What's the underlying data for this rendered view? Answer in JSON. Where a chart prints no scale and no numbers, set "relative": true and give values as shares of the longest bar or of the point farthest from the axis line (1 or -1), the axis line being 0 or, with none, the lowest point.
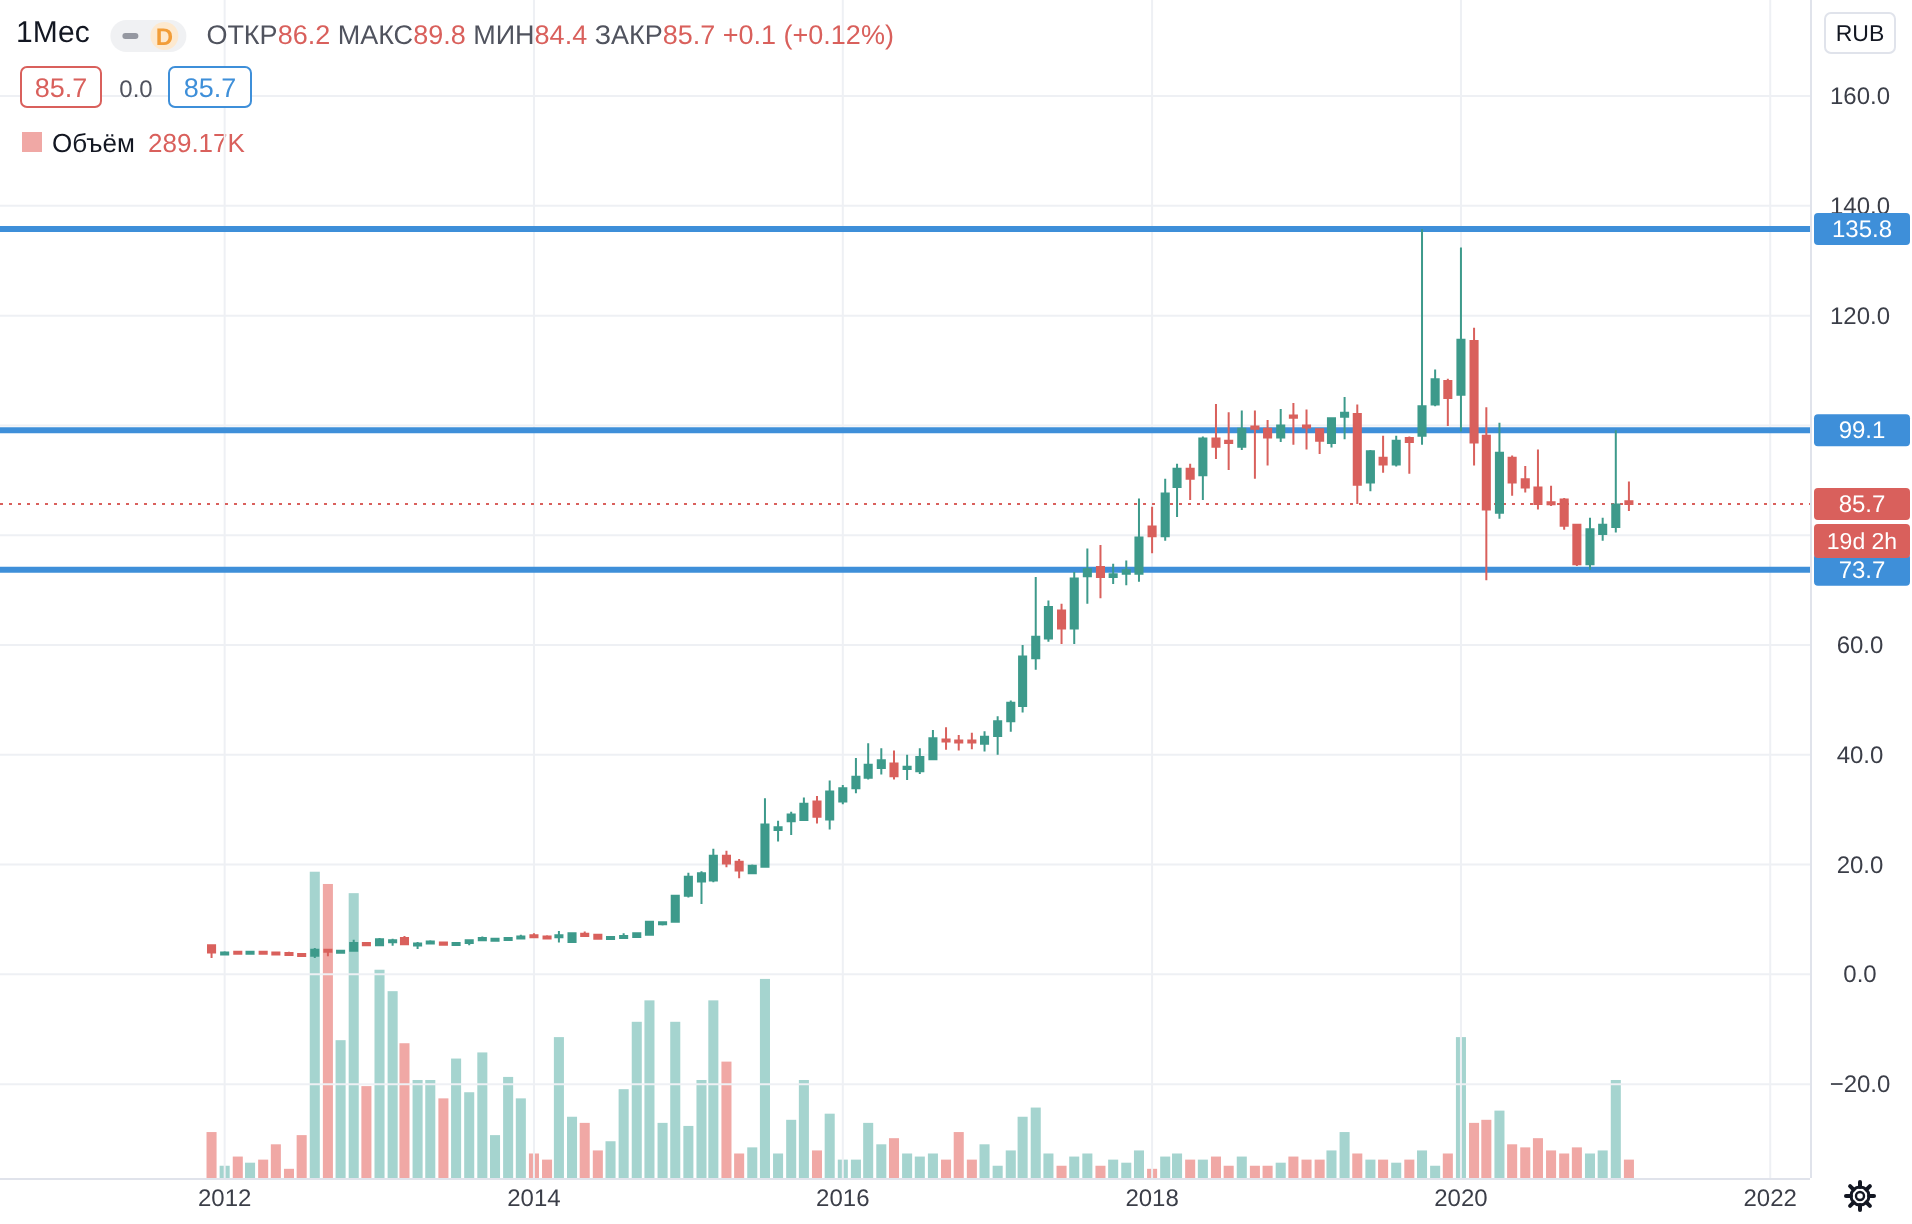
{
  "chart_data": [
    {
      "type": "candlestick",
      "title": "1Мес",
      "x": [
        "2011-12",
        "2012-01",
        "2012-02",
        "2012-03",
        "2012-04",
        "2012-05",
        "2012-06",
        "2012-07",
        "2012-08",
        "2012-09",
        "2012-10",
        "2012-11",
        "2012-12",
        "2013-01",
        "2013-02",
        "2013-03",
        "2013-04",
        "2013-05",
        "2013-06",
        "2013-07",
        "2013-08",
        "2013-09",
        "2013-10",
        "2013-11",
        "2013-12",
        "2014-01",
        "2014-02",
        "2014-03",
        "2014-04",
        "2014-05",
        "2014-06",
        "2014-07",
        "2014-08",
        "2014-09",
        "2014-10",
        "2014-11",
        "2014-12",
        "2015-01",
        "2015-02",
        "2015-03",
        "2015-04",
        "2015-05",
        "2015-06",
        "2015-07",
        "2015-08",
        "2015-09",
        "2015-10",
        "2015-11",
        "2015-12",
        "2016-01",
        "2016-02",
        "2016-03",
        "2016-04",
        "2016-05",
        "2016-06",
        "2016-07",
        "2016-08",
        "2016-09",
        "2016-10",
        "2016-11",
        "2016-12",
        "2017-01",
        "2017-02",
        "2017-03",
        "2017-04",
        "2017-05",
        "2017-06",
        "2017-07",
        "2017-08",
        "2017-09",
        "2017-10",
        "2017-11",
        "2017-12",
        "2018-01",
        "2018-02",
        "2018-03",
        "2018-04",
        "2018-05",
        "2018-06",
        "2018-07",
        "2018-08",
        "2018-09",
        "2018-10",
        "2018-11",
        "2018-12",
        "2019-01",
        "2019-02",
        "2019-03",
        "2019-04",
        "2019-05",
        "2019-06",
        "2019-07",
        "2019-08",
        "2019-09",
        "2019-10",
        "2019-11",
        "2019-12",
        "2020-01",
        "2020-02",
        "2020-03",
        "2020-04",
        "2020-05",
        "2020-06",
        "2020-07",
        "2020-08",
        "2020-09",
        "2020-10",
        "2020-11",
        "2020-12",
        "2021-01",
        "2021-02"
      ],
      "ohlc": [
        [
          5.3,
          5.4,
          3.0,
          4.0
        ],
        [
          3.9,
          4.2,
          3.8,
          4.0
        ],
        [
          4.1,
          4.3,
          3.6,
          4.0
        ],
        [
          4.0,
          4.2,
          3.9,
          4.1
        ],
        [
          4.1,
          4.2,
          3.9,
          4.0
        ],
        [
          4.0,
          4.1,
          3.8,
          3.9
        ],
        [
          3.9,
          4.1,
          3.4,
          3.7
        ],
        [
          3.7,
          3.8,
          3.3,
          3.4
        ],
        [
          3.4,
          4.8,
          3.0,
          4.5
        ],
        [
          4.5,
          4.6,
          3.3,
          4.2
        ],
        [
          4.2,
          4.4,
          4.1,
          4.3
        ],
        [
          4.3,
          6.3,
          4.2,
          5.7
        ],
        [
          5.7,
          5.8,
          5.1,
          5.3
        ],
        [
          5.3,
          6.6,
          5.2,
          6.4
        ],
        [
          6.0,
          6.5,
          5.2,
          6.2
        ],
        [
          6.6,
          7.0,
          5.3,
          5.5
        ],
        [
          5.4,
          5.9,
          4.6,
          5.6
        ],
        [
          5.6,
          6.2,
          5.5,
          6.0
        ],
        [
          5.8,
          5.9,
          5.2,
          5.4
        ],
        [
          5.4,
          5.8,
          5.3,
          5.7
        ],
        [
          5.7,
          6.4,
          5.3,
          6.2
        ],
        [
          6.2,
          6.9,
          6.1,
          6.6
        ],
        [
          6.3,
          6.5,
          6.2,
          6.5
        ],
        [
          6.4,
          6.7,
          6.3,
          6.6
        ],
        [
          6.6,
          7.2,
          6.4,
          6.9
        ],
        [
          7.1,
          7.5,
          6.8,
          7.0
        ],
        [
          6.9,
          7.1,
          6.5,
          6.7
        ],
        [
          6.8,
          7.9,
          5.8,
          7.1
        ],
        [
          5.9,
          7.6,
          5.8,
          7.5
        ],
        [
          7.4,
          7.8,
          6.9,
          7.0
        ],
        [
          7.2,
          7.3,
          6.4,
          6.5
        ],
        [
          6.5,
          7.0,
          6.3,
          6.8
        ],
        [
          6.8,
          7.5,
          6.5,
          7.0
        ],
        [
          6.8,
          7.6,
          6.7,
          7.5
        ],
        [
          7.2,
          9.7,
          7.1,
          9.6
        ],
        [
          9.3,
          9.6,
          8.9,
          9.5
        ],
        [
          9.6,
          14.5,
          9.4,
          14.3
        ],
        [
          14.3,
          18.5,
          14.0,
          17.8
        ],
        [
          16.9,
          18.8,
          12.8,
          18.4
        ],
        [
          17.1,
          22.9,
          16.8,
          21.6
        ],
        [
          21.6,
          22.5,
          19.5,
          20.2
        ],
        [
          20.5,
          21.0,
          17.5,
          18.9
        ],
        [
          18.4,
          20.0,
          18.3,
          19.8
        ],
        [
          19.6,
          32.1,
          19.4,
          27.3
        ],
        [
          26.3,
          28.0,
          24.2,
          26.8
        ],
        [
          27.9,
          29.6,
          25.4,
          29.1
        ],
        [
          28.1,
          32.2,
          28.0,
          31.1
        ],
        [
          31.5,
          32.5,
          27.5,
          28.7
        ],
        [
          28.2,
          35.3,
          26.4,
          33.3
        ],
        [
          31.5,
          34.5,
          31.0,
          33.9
        ],
        [
          33.9,
          39.4,
          33.0,
          36.0
        ],
        [
          35.8,
          42.1,
          35.5,
          38.2
        ],
        [
          37.6,
          41.2,
          36.4,
          39.0
        ],
        [
          38.4,
          40.8,
          35.5,
          36.1
        ],
        [
          37.4,
          40.0,
          35.4,
          37.8
        ],
        [
          37.0,
          41.2,
          36.5,
          39.6
        ],
        [
          39.2,
          44.5,
          39.0,
          43.0
        ],
        [
          42.8,
          45.0,
          40.9,
          42.4
        ],
        [
          42.6,
          43.6,
          40.8,
          42.3
        ],
        [
          42.6,
          44.0,
          41.0,
          42.5
        ],
        [
          42.0,
          44.3,
          40.6,
          43.3
        ],
        [
          43.4,
          47.0,
          40.0,
          46.1
        ],
        [
          46.1,
          49.9,
          44.2,
          49.5
        ],
        [
          48.9,
          60.0,
          47.7,
          57.9
        ],
        [
          57.6,
          72.4,
          55.5,
          61.5
        ],
        [
          61.2,
          68.1,
          60.6,
          66.9
        ],
        [
          66.3,
          67.5,
          60.2,
          63.0
        ],
        [
          63.0,
          73.3,
          60.2,
          72.1
        ],
        [
          72.5,
          77.6,
          67.5,
          73.8
        ],
        [
          74.2,
          78.2,
          68.5,
          72.4
        ],
        [
          72.4,
          74.8,
          71.1,
          72.9
        ],
        [
          73.0,
          75.4,
          70.9,
          73.6
        ],
        [
          73.0,
          86.7,
          71.5,
          79.6
        ],
        [
          81.6,
          85.2,
          76.7,
          79.8
        ],
        [
          79.8,
          90.3,
          79.0,
          87.6
        ],
        [
          88.8,
          93.0,
          83.3,
          92.1
        ],
        [
          92.1,
          93.0,
          86.4,
          90.3
        ],
        [
          90.9,
          98.0,
          86.4,
          97.6
        ],
        [
          97.6,
          103.9,
          93.9,
          96.1
        ],
        [
          97.2,
          102.4,
          91.9,
          96.8
        ],
        [
          96.1,
          102.7,
          95.5,
          99.4
        ],
        [
          99.8,
          102.7,
          90.3,
          99.4
        ],
        [
          99.4,
          101.0,
          92.7,
          97.8
        ],
        [
          97.8,
          103.0,
          97.0,
          100.0
        ],
        [
          101.8,
          104.1,
          96.5,
          101.4
        ],
        [
          100.0,
          102.9,
          95.6,
          99.6
        ],
        [
          99.3,
          99.5,
          94.8,
          97.2
        ],
        [
          96.8,
          101.5,
          96.0,
          101.3
        ],
        [
          101.6,
          105.2,
          97.5,
          102.3
        ],
        [
          102.1,
          103.8,
          85.7,
          89.2
        ],
        [
          89.6,
          95.5,
          88.0,
          95.3
        ],
        [
          94.1,
          98.1,
          91.4,
          92.9
        ],
        [
          92.9,
          98.1,
          92.5,
          97.2
        ],
        [
          97.7,
          98.0,
          91.2,
          97.0
        ],
        [
          98.1,
          135.8,
          96.5,
          103.5
        ],
        [
          103.8,
          110.2,
          103.5,
          108.4
        ],
        [
          108.1,
          108.5,
          99.9,
          105.0
        ],
        [
          105.6,
          132.4,
          98.9,
          115.6
        ],
        [
          115.4,
          117.8,
          92.7,
          96.9
        ],
        [
          98.1,
          103.3,
          71.8,
          84.7
        ],
        [
          84.1,
          100.5,
          83.0,
          95.0
        ],
        [
          94.1,
          94.5,
          87.2,
          89.6
        ],
        [
          90.2,
          92.6,
          87.8,
          88.7
        ],
        [
          88.7,
          95.6,
          84.7,
          85.7
        ],
        [
          86.0,
          89.0,
          85.3,
          85.9
        ],
        [
          86.5,
          86.8,
          81.0,
          81.7
        ],
        [
          81.9,
          82.0,
          74.4,
          74.7
        ],
        [
          74.7,
          83.2,
          73.7,
          81.1
        ],
        [
          80.2,
          83.2,
          79.0,
          81.9
        ],
        [
          81.5,
          99.1,
          80.5,
          85.6
        ],
        [
          86.2,
          89.8,
          84.4,
          85.7
        ]
      ],
      "colors": [
        "#d9605c",
        "#3d9a8b",
        "#d9605c",
        "#3d9a8b",
        "#d9605c",
        "#d9605c",
        "#d9605c",
        "#d9605c",
        "#3d9a8b",
        "#d9605c",
        "#3d9a8b",
        "#3d9a8b",
        "#d9605c",
        "#3d9a8b",
        "#3d9a8b",
        "#d9605c",
        "#3d9a8b",
        "#3d9a8b",
        "#d9605c",
        "#3d9a8b",
        "#3d9a8b",
        "#3d9a8b",
        "#3d9a8b",
        "#3d9a8b",
        "#3d9a8b",
        "#d9605c",
        "#d9605c",
        "#3d9a8b",
        "#3d9a8b",
        "#d9605c",
        "#d9605c",
        "#3d9a8b",
        "#3d9a8b",
        "#3d9a8b",
        "#3d9a8b",
        "#3d9a8b",
        "#3d9a8b",
        "#3d9a8b",
        "#3d9a8b",
        "#3d9a8b",
        "#d9605c",
        "#d9605c",
        "#3d9a8b",
        "#3d9a8b",
        "#3d9a8b",
        "#3d9a8b",
        "#3d9a8b",
        "#d9605c",
        "#3d9a8b",
        "#3d9a8b",
        "#3d9a8b",
        "#3d9a8b",
        "#3d9a8b",
        "#d9605c",
        "#3d9a8b",
        "#3d9a8b",
        "#3d9a8b",
        "#d9605c",
        "#d9605c",
        "#d9605c",
        "#3d9a8b",
        "#3d9a8b",
        "#3d9a8b",
        "#3d9a8b",
        "#3d9a8b",
        "#3d9a8b",
        "#d9605c",
        "#3d9a8b",
        "#3d9a8b",
        "#d9605c",
        "#3d9a8b",
        "#3d9a8b",
        "#3d9a8b",
        "#d9605c",
        "#3d9a8b",
        "#3d9a8b",
        "#d9605c",
        "#3d9a8b",
        "#d9605c",
        "#d9605c",
        "#3d9a8b",
        "#d9605c",
        "#d9605c",
        "#3d9a8b",
        "#d9605c",
        "#d9605c",
        "#d9605c",
        "#3d9a8b",
        "#3d9a8b",
        "#d9605c",
        "#3d9a8b",
        "#d9605c",
        "#3d9a8b",
        "#d9605c",
        "#3d9a8b",
        "#3d9a8b",
        "#d9605c",
        "#3d9a8b",
        "#d9605c",
        "#d9605c",
        "#3d9a8b",
        "#d9605c",
        "#d9605c",
        "#d9605c",
        "#d9605c",
        "#d9605c",
        "#d9605c",
        "#3d9a8b",
        "#3d9a8b",
        "#3d9a8b",
        "#d9605c"
      ],
      "xlim": [
        "2010-07-19",
        "2022-04-05"
      ],
      "xticks": [
        "2012",
        "2014",
        "2016",
        "2018",
        "2020",
        "2022"
      ],
      "ylim": [
        -37.1,
        177.5
      ],
      "yticks": [
        {
          "value": -20,
          "label": "−20.0"
        },
        {
          "value": 0,
          "label": "0.0"
        },
        {
          "value": 20,
          "label": "20.0"
        },
        {
          "value": 40,
          "label": "40.0"
        },
        {
          "value": 60,
          "label": "60.0"
        },
        {
          "value": 80,
          "label": null
        },
        {
          "value": 100,
          "label": null
        },
        {
          "value": 120,
          "label": "120.0"
        },
        {
          "value": 140,
          "label": "140.0"
        },
        {
          "value": 160,
          "label": "160.0"
        }
      ],
      "ref_lines": [
        {
          "axis": "y",
          "value": 135.8,
          "label": "135.8",
          "color": "#3e8fd9"
        },
        {
          "axis": "y",
          "value": 99.1,
          "label": "99.1",
          "color": "#3e8fd9"
        },
        {
          "axis": "y",
          "value": 73.7,
          "label": "73.7",
          "color": "#3e8fd9"
        },
        {
          "axis": "y",
          "value": 85.7,
          "label": "85.7",
          "color": "#d9605c",
          "line_style": "dotted"
        }
      ],
      "annotations": [
        "ОТКР86.2 МАКС89.8 МИН84.4 ЗАКР85.7 +0.1 (+0.12%)",
        "85.7",
        "0.0",
        "85.7",
        "RUB",
        "19d 2h",
        "D"
      ],
      "grid": true
    },
    {
      "type": "bar",
      "relative": true,
      "legend": "top left",
      "x": [
        "2011-12",
        "2012-01",
        "2012-02",
        "2012-03",
        "2012-04",
        "2012-05",
        "2012-06",
        "2012-07",
        "2012-08",
        "2012-09",
        "2012-10",
        "2012-11",
        "2012-12",
        "2013-01",
        "2013-02",
        "2013-03",
        "2013-04",
        "2013-05",
        "2013-06",
        "2013-07",
        "2013-08",
        "2013-09",
        "2013-10",
        "2013-11",
        "2013-12",
        "2014-01",
        "2014-02",
        "2014-03",
        "2014-04",
        "2014-05",
        "2014-06",
        "2014-07",
        "2014-08",
        "2014-09",
        "2014-10",
        "2014-11",
        "2014-12",
        "2015-01",
        "2015-02",
        "2015-03",
        "2015-04",
        "2015-05",
        "2015-06",
        "2015-07",
        "2015-08",
        "2015-09",
        "2015-10",
        "2015-11",
        "2015-12",
        "2016-01",
        "2016-02",
        "2016-03",
        "2016-04",
        "2016-05",
        "2016-06",
        "2016-07",
        "2016-08",
        "2016-09",
        "2016-10",
        "2016-11",
        "2016-12",
        "2017-01",
        "2017-02",
        "2017-03",
        "2017-04",
        "2017-05",
        "2017-06",
        "2017-07",
        "2017-08",
        "2017-09",
        "2017-10",
        "2017-11",
        "2017-12",
        "2018-01",
        "2018-02",
        "2018-03",
        "2018-04",
        "2018-05",
        "2018-06",
        "2018-07",
        "2018-08",
        "2018-09",
        "2018-10",
        "2018-11",
        "2018-12",
        "2019-01",
        "2019-02",
        "2019-03",
        "2019-04",
        "2019-05",
        "2019-06",
        "2019-07",
        "2019-08",
        "2019-09",
        "2019-10",
        "2019-11",
        "2019-12",
        "2020-01",
        "2020-02",
        "2020-03",
        "2020-04",
        "2020-05",
        "2020-06",
        "2020-07",
        "2020-08",
        "2020-09",
        "2020-10",
        "2020-11",
        "2020-12",
        "2021-01",
        "2021-02"
      ],
      "xlim": [
        "2010-07-19",
        "2022-04-05"
      ],
      "series": [
        {
          "name": "Объём",
          "values": [
            0.15,
            0.04,
            0.07,
            0.05,
            0.06,
            0.11,
            0.03,
            0.14,
            1,
            0.96,
            0.45,
            0.93,
            0.3,
            0.68,
            0.61,
            0.44,
            0.32,
            0.32,
            0.26,
            0.39,
            0.28,
            0.41,
            0.14,
            0.33,
            0.26,
            0.08,
            0.06,
            0.46,
            0.2,
            0.18,
            0.09,
            0.12,
            0.29,
            0.51,
            0.58,
            0.18,
            0.51,
            0.17,
            0.32,
            0.58,
            0.38,
            0.08,
            0.1,
            0.65,
            0.08,
            0.19,
            0.32,
            0.09,
            0.21,
            0.06,
            0.06,
            0.18,
            0.11,
            0.13,
            0.08,
            0.07,
            0.08,
            0.06,
            0.15,
            0.06,
            0.11,
            0.04,
            0.09,
            0.2,
            0.23,
            0.08,
            0.04,
            0.07,
            0.08,
            0.04,
            0.06,
            0.05,
            0.09,
            0.03,
            0.07,
            0.08,
            0.06,
            0.06,
            0.07,
            0.04,
            0.07,
            0.04,
            0.04,
            0.05,
            0.07,
            0.06,
            0.06,
            0.09,
            0.15,
            0.08,
            0.06,
            0.06,
            0.05,
            0.06,
            0.09,
            0.04,
            0.08,
            0.46,
            0.18,
            0.19,
            0.22,
            0.11,
            0.1,
            0.13,
            0.09,
            0.08,
            0.1,
            0.08,
            0.09,
            0.32,
            0.06
          ],
          "colors": [
            "#f0a8a5",
            "#a5d4cf",
            "#f0a8a5",
            "#a5d4cf",
            "#f0a8a5",
            "#f0a8a5",
            "#f0a8a5",
            "#f0a8a5",
            "#a5d4cf",
            "#f0a8a5",
            "#a5d4cf",
            "#a5d4cf",
            "#f0a8a5",
            "#a5d4cf",
            "#a5d4cf",
            "#f0a8a5",
            "#a5d4cf",
            "#a5d4cf",
            "#f0a8a5",
            "#a5d4cf",
            "#a5d4cf",
            "#a5d4cf",
            "#a5d4cf",
            "#a5d4cf",
            "#a5d4cf",
            "#f0a8a5",
            "#f0a8a5",
            "#a5d4cf",
            "#a5d4cf",
            "#f0a8a5",
            "#f0a8a5",
            "#a5d4cf",
            "#a5d4cf",
            "#a5d4cf",
            "#a5d4cf",
            "#a5d4cf",
            "#a5d4cf",
            "#a5d4cf",
            "#a5d4cf",
            "#a5d4cf",
            "#f0a8a5",
            "#f0a8a5",
            "#a5d4cf",
            "#a5d4cf",
            "#a5d4cf",
            "#a5d4cf",
            "#a5d4cf",
            "#f0a8a5",
            "#a5d4cf",
            "#a5d4cf",
            "#a5d4cf",
            "#a5d4cf",
            "#a5d4cf",
            "#f0a8a5",
            "#a5d4cf",
            "#a5d4cf",
            "#a5d4cf",
            "#f0a8a5",
            "#f0a8a5",
            "#f0a8a5",
            "#a5d4cf",
            "#a5d4cf",
            "#a5d4cf",
            "#a5d4cf",
            "#a5d4cf",
            "#a5d4cf",
            "#f0a8a5",
            "#a5d4cf",
            "#a5d4cf",
            "#f0a8a5",
            "#a5d4cf",
            "#a5d4cf",
            "#a5d4cf",
            "#f0a8a5",
            "#a5d4cf",
            "#a5d4cf",
            "#f0a8a5",
            "#a5d4cf",
            "#f0a8a5",
            "#f0a8a5",
            "#a5d4cf",
            "#f0a8a5",
            "#f0a8a5",
            "#a5d4cf",
            "#f0a8a5",
            "#f0a8a5",
            "#f0a8a5",
            "#a5d4cf",
            "#a5d4cf",
            "#f0a8a5",
            "#a5d4cf",
            "#f0a8a5",
            "#a5d4cf",
            "#f0a8a5",
            "#a5d4cf",
            "#a5d4cf",
            "#f0a8a5",
            "#a5d4cf",
            "#f0a8a5",
            "#f0a8a5",
            "#a5d4cf",
            "#f0a8a5",
            "#f0a8a5",
            "#f0a8a5",
            "#f0a8a5",
            "#f0a8a5",
            "#f0a8a5",
            "#a5d4cf",
            "#a5d4cf",
            "#a5d4cf",
            "#f0a8a5"
          ]
        }
      ],
      "annotations": [
        "289.17K"
      ]
    }
  ]
}
